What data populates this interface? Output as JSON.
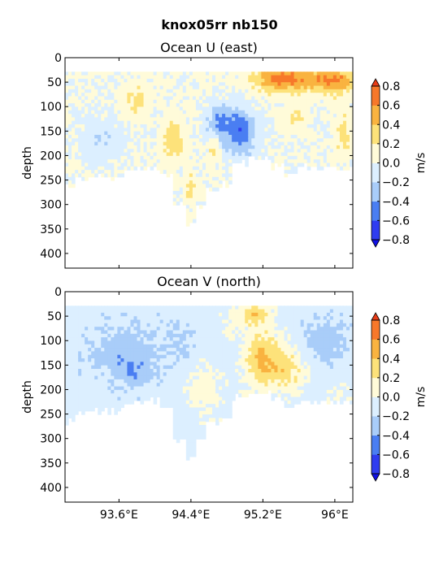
{
  "figure": {
    "suptitle": "knox05rr nb150"
  },
  "chart_data": [
    {
      "type": "heatmap",
      "title": "Ocean U (east)",
      "xlabel": "",
      "ylabel": "depth",
      "x_range": [
        93.0,
        96.2
      ],
      "y_range": [
        0,
        430
      ],
      "y_inverted": true,
      "y_ticks": [
        0,
        50,
        100,
        150,
        200,
        250,
        300,
        350,
        400
      ],
      "y_tick_labels": [
        "0",
        "50",
        "100",
        "150",
        "200",
        "250",
        "300",
        "350",
        "400"
      ],
      "x_ticks": [
        93.6,
        94.4,
        95.2,
        96.0
      ],
      "x_tick_labels": [
        "",
        "",
        "",
        ""
      ],
      "colorbar": {
        "label": "m/s",
        "levels": [
          -0.8,
          -0.6,
          -0.4,
          -0.2,
          0.0,
          0.2,
          0.4,
          0.6,
          0.8
        ],
        "tick_labels": [
          "−0.8",
          "−0.6",
          "−0.4",
          "−0.2",
          "0.0",
          "0.2",
          "0.4",
          "0.6",
          "0.8"
        ],
        "colors": [
          "#2f3cf0",
          "#4a7ef2",
          "#a9cdf9",
          "#dcefff",
          "#fffbd9",
          "#fde27a",
          "#f9b340",
          "#f7782a"
        ],
        "extend_low": "#1010e6",
        "extend_high": "#e83c17"
      },
      "data_top_depth": 30,
      "grid": false,
      "legend": "none"
    },
    {
      "type": "heatmap",
      "title": "Ocean V (north)",
      "xlabel": "",
      "ylabel": "depth",
      "x_range": [
        93.0,
        96.2
      ],
      "y_range": [
        0,
        430
      ],
      "y_inverted": true,
      "y_ticks": [
        0,
        50,
        100,
        150,
        200,
        250,
        300,
        350,
        400
      ],
      "y_tick_labels": [
        "0",
        "50",
        "100",
        "150",
        "200",
        "250",
        "300",
        "350",
        "400"
      ],
      "x_ticks": [
        93.6,
        94.4,
        95.2,
        96.0
      ],
      "x_tick_labels": [
        "93.6°E",
        "94.4°E",
        "95.2°E",
        "96°E"
      ],
      "colorbar": {
        "label": "m/s",
        "levels": [
          -0.8,
          -0.6,
          -0.4,
          -0.2,
          0.0,
          0.2,
          0.4,
          0.6,
          0.8
        ],
        "tick_labels": [
          "−0.8",
          "−0.6",
          "−0.4",
          "−0.2",
          "0.0",
          "0.2",
          "0.4",
          "0.6",
          "0.8"
        ],
        "colors": [
          "#2f3cf0",
          "#4a7ef2",
          "#a9cdf9",
          "#dcefff",
          "#fffbd9",
          "#fde27a",
          "#f9b340",
          "#f7782a"
        ],
        "extend_low": "#1010e6",
        "extend_high": "#e83c17"
      },
      "data_top_depth": 30,
      "grid": false,
      "legend": "none"
    }
  ]
}
